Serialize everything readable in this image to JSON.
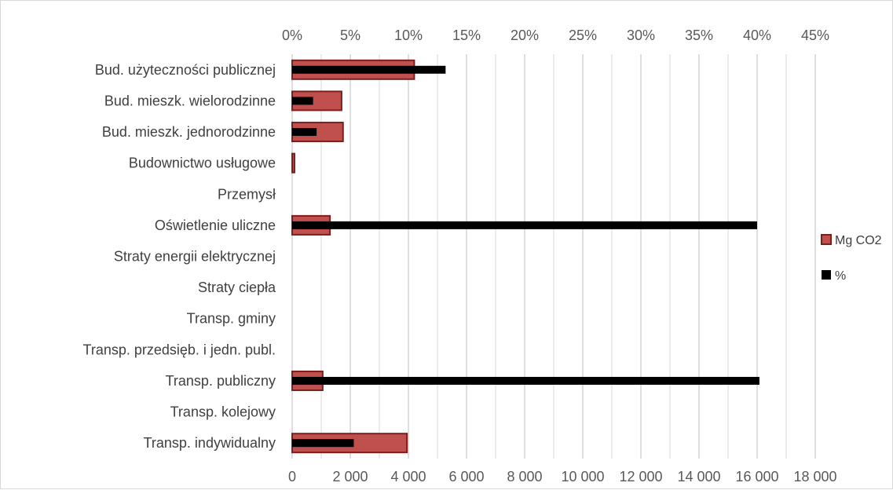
{
  "chart_data": {
    "type": "bar",
    "orientation": "horizontal",
    "categories": [
      "Bud. użyteczności publicznej",
      "Bud. mieszk. wielorodzinne",
      "Bud. mieszk. jednorodzinne",
      "Budownictwo usługowe",
      "Przemysł",
      "Oświetlenie uliczne",
      "Straty energii elektrycznej",
      "Straty ciepła",
      "Transp. gminy",
      "Transp. przedsięb. i jedn. publ.",
      "Transp. publiczny",
      "Transp. kolejowy",
      "Transp. indywidualny"
    ],
    "series": [
      {
        "name": "Mg CO2",
        "axis": "bottom",
        "color": "#c0504d",
        "edge_color": "#7b1f1d",
        "values": [
          4200,
          1700,
          1750,
          80,
          0,
          1300,
          0,
          0,
          0,
          0,
          1050,
          0,
          3950
        ]
      },
      {
        "name": "%",
        "axis": "top",
        "color": "#000000",
        "values": [
          13.2,
          1.8,
          2.1,
          0,
          0,
          40.0,
          0,
          0,
          0,
          0,
          40.2,
          0,
          5.3
        ]
      }
    ],
    "x_bottom": {
      "ticks": [
        "0",
        "2 000",
        "4 000",
        "6 000",
        "8 000",
        "10 000",
        "12 000",
        "14 000",
        "16 000",
        "18 000"
      ],
      "range": [
        0,
        18000
      ]
    },
    "x_top": {
      "ticks": [
        "0%",
        "5%",
        "10%",
        "15%",
        "20%",
        "25%",
        "30%",
        "35%",
        "40%",
        "45%"
      ],
      "range": [
        0,
        45
      ]
    },
    "grid": true,
    "legend_position": "right"
  }
}
